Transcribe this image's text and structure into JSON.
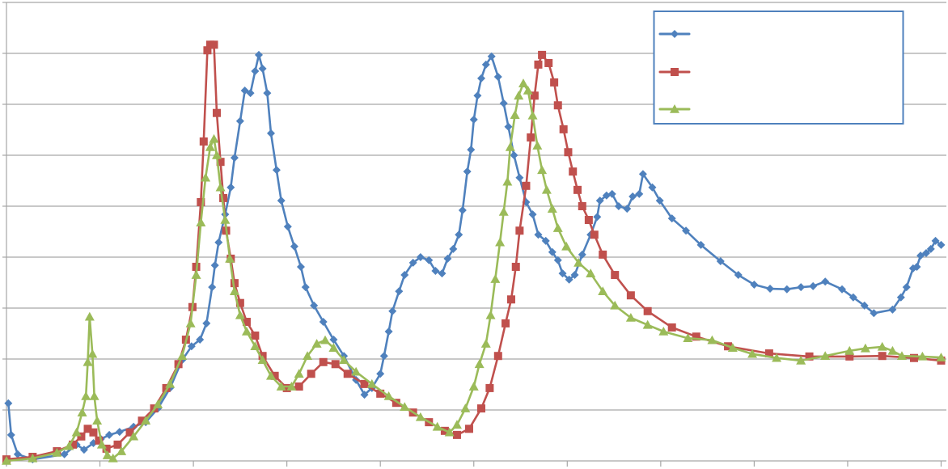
{
  "chart_data": {
    "type": "line",
    "title": "",
    "xlabel": "",
    "ylabel": "",
    "xlim": [
      0,
      10
    ],
    "ylim": [
      0,
      9
    ],
    "grid": {
      "horizontal": true,
      "vertical": false
    },
    "x_ticks": [
      0,
      1,
      2,
      3,
      4,
      5,
      6,
      7,
      8,
      9,
      10
    ],
    "y_gridlines": [
      0,
      1,
      2,
      3,
      4,
      5,
      6,
      7,
      8,
      9
    ],
    "tick_labels_visible": false,
    "legend": {
      "placement": "top-right",
      "labels_visible": false
    },
    "series": [
      {
        "marker": "diamond",
        "color": "#4f81bd",
        "points": [
          [
            0.02,
            1.13
          ],
          [
            0.05,
            0.51
          ],
          [
            0.12,
            0.13
          ],
          [
            0.28,
            0.03
          ],
          [
            0.62,
            0.13
          ],
          [
            0.75,
            0.32
          ],
          [
            0.83,
            0.22
          ],
          [
            0.93,
            0.35
          ],
          [
            1.01,
            0.43
          ],
          [
            1.1,
            0.51
          ],
          [
            1.21,
            0.57
          ],
          [
            1.36,
            0.67
          ],
          [
            1.49,
            0.76
          ],
          [
            1.62,
            1.03
          ],
          [
            1.75,
            1.43
          ],
          [
            1.88,
            1.98
          ],
          [
            1.98,
            2.25
          ],
          [
            2.07,
            2.38
          ],
          [
            2.14,
            2.7
          ],
          [
            2.2,
            3.41
          ],
          [
            2.23,
            3.84
          ],
          [
            2.27,
            4.29
          ],
          [
            2.34,
            4.84
          ],
          [
            2.4,
            5.37
          ],
          [
            2.44,
            5.95
          ],
          [
            2.5,
            6.67
          ],
          [
            2.55,
            7.27
          ],
          [
            2.61,
            7.22
          ],
          [
            2.66,
            7.65
          ],
          [
            2.7,
            7.97
          ],
          [
            2.74,
            7.7
          ],
          [
            2.79,
            7.22
          ],
          [
            2.83,
            6.43
          ],
          [
            2.89,
            5.71
          ],
          [
            2.94,
            5.11
          ],
          [
            3.01,
            4.6
          ],
          [
            3.08,
            4.21
          ],
          [
            3.15,
            3.81
          ],
          [
            3.2,
            3.41
          ],
          [
            3.29,
            3.05
          ],
          [
            3.39,
            2.73
          ],
          [
            3.5,
            2.38
          ],
          [
            3.61,
            2.06
          ],
          [
            3.74,
            1.59
          ],
          [
            3.83,
            1.3
          ],
          [
            3.91,
            1.43
          ],
          [
            4.0,
            1.71
          ],
          [
            4.04,
            2.06
          ],
          [
            4.09,
            2.54
          ],
          [
            4.13,
            2.94
          ],
          [
            4.2,
            3.33
          ],
          [
            4.26,
            3.65
          ],
          [
            4.35,
            3.89
          ],
          [
            4.43,
            4.0
          ],
          [
            4.52,
            3.94
          ],
          [
            4.59,
            3.73
          ],
          [
            4.66,
            3.68
          ],
          [
            4.72,
            3.97
          ],
          [
            4.78,
            4.16
          ],
          [
            4.84,
            4.44
          ],
          [
            4.88,
            4.92
          ],
          [
            4.93,
            5.68
          ],
          [
            4.97,
            6.11
          ],
          [
            5.0,
            6.7
          ],
          [
            5.04,
            7.17
          ],
          [
            5.08,
            7.51
          ],
          [
            5.13,
            7.78
          ],
          [
            5.19,
            7.94
          ],
          [
            5.26,
            7.54
          ],
          [
            5.32,
            7.02
          ],
          [
            5.37,
            6.56
          ],
          [
            5.43,
            6.0
          ],
          [
            5.49,
            5.56
          ],
          [
            5.56,
            5.08
          ],
          [
            5.63,
            4.84
          ],
          [
            5.69,
            4.44
          ],
          [
            5.77,
            4.32
          ],
          [
            5.84,
            4.1
          ],
          [
            5.9,
            3.94
          ],
          [
            5.95,
            3.68
          ],
          [
            6.02,
            3.56
          ],
          [
            6.08,
            3.65
          ],
          [
            6.16,
            4.05
          ],
          [
            6.25,
            4.44
          ],
          [
            6.32,
            4.79
          ],
          [
            6.35,
            5.11
          ],
          [
            6.42,
            5.21
          ],
          [
            6.48,
            5.24
          ],
          [
            6.55,
            5.0
          ],
          [
            6.64,
            4.95
          ],
          [
            6.7,
            5.19
          ],
          [
            6.77,
            5.24
          ],
          [
            6.81,
            5.63
          ],
          [
            6.91,
            5.37
          ],
          [
            6.99,
            5.11
          ],
          [
            7.12,
            4.76
          ],
          [
            7.27,
            4.52
          ],
          [
            7.43,
            4.24
          ],
          [
            7.64,
            3.92
          ],
          [
            7.83,
            3.65
          ],
          [
            8.0,
            3.46
          ],
          [
            8.17,
            3.38
          ],
          [
            8.35,
            3.37
          ],
          [
            8.5,
            3.41
          ],
          [
            8.63,
            3.43
          ],
          [
            8.76,
            3.52
          ],
          [
            8.94,
            3.37
          ],
          [
            9.06,
            3.21
          ],
          [
            9.18,
            3.05
          ],
          [
            9.28,
            2.9
          ],
          [
            9.48,
            2.97
          ],
          [
            9.57,
            3.21
          ],
          [
            9.63,
            3.41
          ],
          [
            9.7,
            3.78
          ],
          [
            9.74,
            3.81
          ],
          [
            9.78,
            4.03
          ],
          [
            9.84,
            4.08
          ],
          [
            9.89,
            4.16
          ],
          [
            9.94,
            4.32
          ],
          [
            10.0,
            4.24
          ]
        ]
      },
      {
        "marker": "square",
        "color": "#c0504d",
        "points": [
          [
            0,
            0.03
          ],
          [
            0.28,
            0.08
          ],
          [
            0.54,
            0.19
          ],
          [
            0.71,
            0.32
          ],
          [
            0.8,
            0.48
          ],
          [
            0.87,
            0.63
          ],
          [
            0.93,
            0.56
          ],
          [
            0.99,
            0.4
          ],
          [
            1.07,
            0.24
          ],
          [
            1.19,
            0.32
          ],
          [
            1.32,
            0.56
          ],
          [
            1.45,
            0.79
          ],
          [
            1.58,
            1.03
          ],
          [
            1.71,
            1.43
          ],
          [
            1.84,
            1.9
          ],
          [
            1.92,
            2.38
          ],
          [
            1.99,
            3.02
          ],
          [
            2.03,
            3.81
          ],
          [
            2.08,
            5.08
          ],
          [
            2.11,
            6.27
          ],
          [
            2.15,
            8.06
          ],
          [
            2.18,
            8.17
          ],
          [
            2.22,
            8.17
          ],
          [
            2.25,
            6.83
          ],
          [
            2.29,
            5.87
          ],
          [
            2.32,
            5.16
          ],
          [
            2.35,
            4.52
          ],
          [
            2.4,
            3.97
          ],
          [
            2.44,
            3.49
          ],
          [
            2.5,
            3.1
          ],
          [
            2.57,
            2.73
          ],
          [
            2.66,
            2.46
          ],
          [
            2.74,
            2.06
          ],
          [
            2.87,
            1.67
          ],
          [
            3.0,
            1.43
          ],
          [
            3.13,
            1.46
          ],
          [
            3.26,
            1.71
          ],
          [
            3.39,
            1.94
          ],
          [
            3.52,
            1.9
          ],
          [
            3.65,
            1.71
          ],
          [
            3.83,
            1.51
          ],
          [
            4.0,
            1.32
          ],
          [
            4.17,
            1.14
          ],
          [
            4.35,
            0.95
          ],
          [
            4.52,
            0.76
          ],
          [
            4.69,
            0.59
          ],
          [
            4.82,
            0.51
          ],
          [
            4.95,
            0.63
          ],
          [
            5.08,
            1.03
          ],
          [
            5.17,
            1.43
          ],
          [
            5.26,
            2.06
          ],
          [
            5.34,
            2.7
          ],
          [
            5.4,
            3.17
          ],
          [
            5.45,
            3.81
          ],
          [
            5.49,
            4.52
          ],
          [
            5.56,
            5.4
          ],
          [
            5.61,
            6.35
          ],
          [
            5.65,
            7.17
          ],
          [
            5.69,
            7.78
          ],
          [
            5.73,
            7.97
          ],
          [
            5.8,
            7.81
          ],
          [
            5.86,
            7.43
          ],
          [
            5.9,
            6.98
          ],
          [
            5.96,
            6.51
          ],
          [
            6.01,
            6.06
          ],
          [
            6.06,
            5.68
          ],
          [
            6.11,
            5.32
          ],
          [
            6.16,
            5.0
          ],
          [
            6.23,
            4.73
          ],
          [
            6.29,
            4.44
          ],
          [
            6.38,
            4.05
          ],
          [
            6.51,
            3.65
          ],
          [
            6.68,
            3.25
          ],
          [
            6.86,
            2.94
          ],
          [
            7.12,
            2.62
          ],
          [
            7.38,
            2.44
          ],
          [
            7.72,
            2.25
          ],
          [
            8.16,
            2.11
          ],
          [
            8.59,
            2.05
          ],
          [
            9.02,
            2.05
          ],
          [
            9.37,
            2.06
          ],
          [
            9.71,
            2.02
          ],
          [
            10.0,
            1.97
          ]
        ]
      },
      {
        "marker": "triangle",
        "color": "#9bbb59",
        "points": [
          [
            0,
            0
          ],
          [
            0.28,
            0.05
          ],
          [
            0.54,
            0.16
          ],
          [
            0.67,
            0.29
          ],
          [
            0.75,
            0.56
          ],
          [
            0.81,
            0.95
          ],
          [
            0.85,
            1.27
          ],
          [
            0.87,
            1.94
          ],
          [
            0.89,
            2.83
          ],
          [
            0.92,
            2.1
          ],
          [
            0.94,
            1.27
          ],
          [
            0.97,
            0.79
          ],
          [
            1.02,
            0.32
          ],
          [
            1.08,
            0.11
          ],
          [
            1.14,
            0.05
          ],
          [
            1.23,
            0.19
          ],
          [
            1.36,
            0.48
          ],
          [
            1.49,
            0.79
          ],
          [
            1.62,
            1.11
          ],
          [
            1.75,
            1.51
          ],
          [
            1.88,
            2.06
          ],
          [
            1.97,
            2.7
          ],
          [
            2.03,
            3.65
          ],
          [
            2.08,
            4.68
          ],
          [
            2.13,
            5.56
          ],
          [
            2.18,
            6.16
          ],
          [
            2.22,
            6.32
          ],
          [
            2.25,
            6.0
          ],
          [
            2.29,
            5.37
          ],
          [
            2.34,
            4.73
          ],
          [
            2.39,
            3.97
          ],
          [
            2.44,
            3.33
          ],
          [
            2.5,
            2.86
          ],
          [
            2.57,
            2.54
          ],
          [
            2.66,
            2.25
          ],
          [
            2.74,
            1.98
          ],
          [
            2.83,
            1.67
          ],
          [
            2.94,
            1.46
          ],
          [
            3.05,
            1.46
          ],
          [
            3.13,
            1.71
          ],
          [
            3.22,
            2.06
          ],
          [
            3.32,
            2.3
          ],
          [
            3.41,
            2.37
          ],
          [
            3.5,
            2.22
          ],
          [
            3.61,
            1.98
          ],
          [
            3.74,
            1.75
          ],
          [
            3.91,
            1.51
          ],
          [
            4.09,
            1.27
          ],
          [
            4.26,
            1.06
          ],
          [
            4.43,
            0.86
          ],
          [
            4.61,
            0.67
          ],
          [
            4.74,
            0.56
          ],
          [
            4.82,
            0.71
          ],
          [
            4.91,
            1.03
          ],
          [
            5.0,
            1.46
          ],
          [
            5.06,
            1.9
          ],
          [
            5.13,
            2.3
          ],
          [
            5.18,
            2.86
          ],
          [
            5.23,
            3.57
          ],
          [
            5.28,
            4.29
          ],
          [
            5.32,
            4.89
          ],
          [
            5.36,
            5.48
          ],
          [
            5.39,
            6.16
          ],
          [
            5.44,
            6.79
          ],
          [
            5.48,
            7.17
          ],
          [
            5.53,
            7.41
          ],
          [
            5.58,
            7.27
          ],
          [
            5.63,
            6.78
          ],
          [
            5.68,
            6.19
          ],
          [
            5.73,
            5.71
          ],
          [
            5.78,
            5.32
          ],
          [
            5.84,
            4.95
          ],
          [
            5.9,
            4.57
          ],
          [
            5.99,
            4.21
          ],
          [
            6.12,
            3.89
          ],
          [
            6.25,
            3.68
          ],
          [
            6.38,
            3.33
          ],
          [
            6.51,
            3.05
          ],
          [
            6.68,
            2.81
          ],
          [
            6.86,
            2.67
          ],
          [
            7.03,
            2.54
          ],
          [
            7.29,
            2.41
          ],
          [
            7.55,
            2.37
          ],
          [
            7.77,
            2.22
          ],
          [
            7.98,
            2.1
          ],
          [
            8.24,
            2.02
          ],
          [
            8.5,
            1.97
          ],
          [
            8.76,
            2.06
          ],
          [
            9.02,
            2.16
          ],
          [
            9.19,
            2.21
          ],
          [
            9.37,
            2.24
          ],
          [
            9.48,
            2.16
          ],
          [
            9.58,
            2.06
          ],
          [
            9.8,
            2.05
          ],
          [
            10.0,
            2.03
          ]
        ]
      }
    ]
  }
}
